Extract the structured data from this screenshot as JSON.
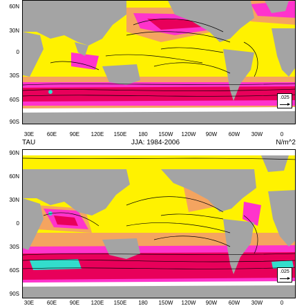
{
  "top_panel": {
    "y_labels": [
      "60N",
      "30N",
      "0",
      "30S",
      "60S",
      "90S"
    ],
    "x_labels": [
      "30E",
      "60E",
      "90E",
      "120E",
      "150E",
      "180",
      "150W",
      "120W",
      "90W",
      "60W",
      "30W",
      "0"
    ],
    "reference_vector_label": ".025"
  },
  "bottom_panel": {
    "left_title": "TAU",
    "center_title": "JJA: 1984-2006",
    "right_title": "N/m^2",
    "y_labels": [
      "90N",
      "60N",
      "30N",
      "0",
      "30S",
      "60S",
      "90S"
    ],
    "x_labels": [
      "30E",
      "60E",
      "90E",
      "120E",
      "150E",
      "180",
      "150W",
      "120W",
      "90W",
      "60W",
      "30W",
      "0"
    ],
    "reference_vector_label": ".025"
  },
  "colors": {
    "land": "#a4a4a4",
    "ocean_low": "#ffffff",
    "level_1": "#fff200",
    "level_2": "#f4a460",
    "level_3": "#ff33cc",
    "level_4": "#e8005a",
    "level_5": "#33ddcc",
    "streamline": "#000000"
  }
}
